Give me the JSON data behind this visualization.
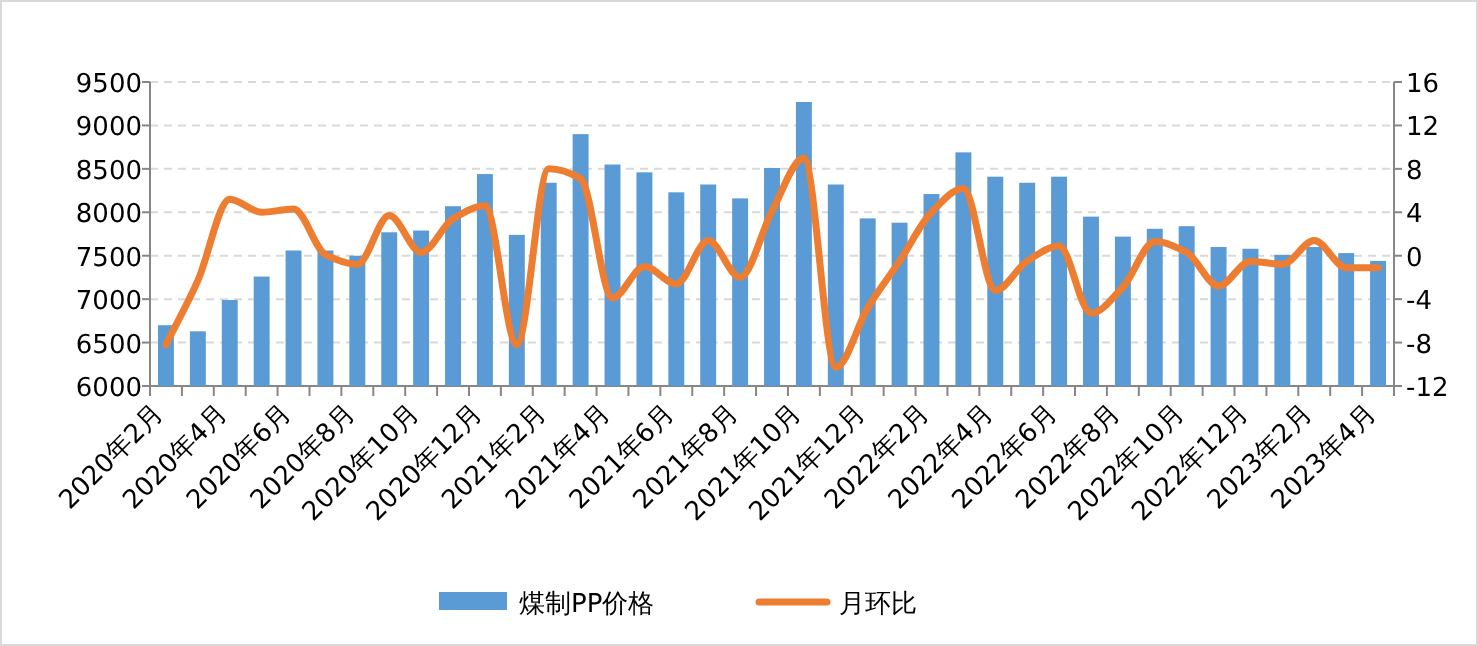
{
  "chart_data": {
    "type": "bar",
    "categories": [
      "2020年2月",
      null,
      "2020年4月",
      null,
      "2020年6月",
      null,
      "2020年8月",
      null,
      "2020年10月",
      null,
      "2020年12月",
      null,
      "2021年2月",
      null,
      "2021年4月",
      null,
      "2021年6月",
      null,
      "2021年8月",
      null,
      "2021年10月",
      null,
      "2021年12月",
      null,
      "2022年2月",
      null,
      "2022年4月",
      null,
      "2022年6月",
      null,
      "2022年8月",
      null,
      "2022年10月",
      null,
      "2022年12月",
      null,
      "2023年2月",
      null,
      "2023年4月"
    ],
    "series": [
      {
        "name": "煤制PP价格",
        "color": "#5b9bd5",
        "values": [
          6700,
          6630,
          6990,
          7260,
          7560,
          7560,
          7500,
          7770,
          7790,
          8070,
          8440,
          7740,
          8340,
          8900,
          8550,
          8460,
          8230,
          8320,
          8160,
          8510,
          9270,
          8320,
          7930,
          7880,
          8210,
          8690,
          8410,
          8340,
          8410,
          7950,
          7720,
          7810,
          7840,
          7600,
          7580,
          7510,
          7600,
          7530,
          7440
        ]
      },
      {
        "name": "月环比",
        "type": "line",
        "axis": "y2",
        "color": "#ed7d31",
        "values": [
          -8.2,
          -2.3,
          5.2,
          4.0,
          4.3,
          0.1,
          -0.8,
          3.7,
          0.3,
          3.4,
          4.6,
          -8.2,
          8.0,
          7.1,
          -3.9,
          -1.0,
          -2.6,
          1.4,
          -2.0,
          4.1,
          9.0,
          -10.3,
          -4.8,
          -0.5,
          4.0,
          6.2,
          -3.2,
          -0.5,
          0.9,
          -5.3,
          -2.9,
          1.3,
          0.3,
          -2.8,
          -0.5,
          -0.8,
          1.4,
          -1.1,
          -1.1
        ]
      }
    ],
    "ylim": [
      6000,
      9500
    ],
    "yticks": [
      6000,
      6500,
      7000,
      7500,
      8000,
      8500,
      9000,
      9500
    ],
    "y2lim": [
      -12,
      16
    ],
    "y2ticks": [
      -12,
      -8,
      -4,
      0,
      4,
      8,
      12,
      16
    ],
    "grid": "y",
    "legend": "bottom"
  }
}
